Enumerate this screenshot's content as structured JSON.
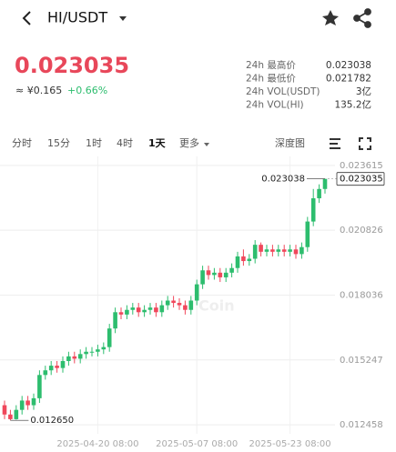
{
  "header": {
    "title": "HI/USDT"
  },
  "price": {
    "last": "0.023035",
    "approx": "≈ ¥0.165",
    "change": "+0.66%"
  },
  "stats": [
    [
      "24h 最高价",
      "0.023038"
    ],
    [
      "24h 最低价",
      "0.021782"
    ],
    [
      "24h VOL(USDT)",
      "3亿"
    ],
    [
      "24h VOL(HI)",
      "135.2亿"
    ]
  ],
  "tabs": [
    "分时",
    "15分",
    "1时",
    "4时",
    "1天",
    "更多"
  ],
  "depth": "深度图",
  "chart_data": {
    "type": "candlestick",
    "categories": [
      null,
      null,
      null,
      null,
      null,
      null,
      null,
      null,
      null,
      null,
      null,
      null,
      null,
      null,
      null,
      null,
      "2025-04-20 08:00",
      null,
      null,
      null,
      null,
      null,
      null,
      null,
      null,
      null,
      null,
      null,
      null,
      null,
      null,
      null,
      null,
      "2025-05-07 08:00",
      null,
      null,
      null,
      null,
      null,
      null,
      null,
      null,
      null,
      null,
      null,
      null,
      null,
      null,
      null,
      "2025-05-23 08:00",
      null,
      null,
      null,
      null,
      null,
      null
    ],
    "series": {
      "open": [
        0.0133,
        0.0129,
        0.0127,
        0.0131,
        0.0135,
        0.0133,
        0.0136,
        0.0146,
        0.0148,
        0.015,
        0.0149,
        0.0152,
        0.0154,
        0.0153,
        0.0155,
        0.0156,
        0.0156,
        0.0157,
        0.0158,
        0.0166,
        0.0173,
        0.0172,
        0.0174,
        0.0175,
        0.0173,
        0.0174,
        0.0175,
        0.0173,
        0.0176,
        0.0178,
        0.0177,
        0.0176,
        0.0174,
        0.0178,
        0.0185,
        0.0191,
        0.0189,
        0.019,
        0.0188,
        0.019,
        0.0192,
        0.0197,
        0.0195,
        0.0196,
        0.0202,
        0.0199,
        0.02,
        0.0199,
        0.02,
        0.0199,
        0.02,
        0.0198,
        0.0201,
        0.0212,
        0.0222,
        0.0226
      ],
      "high": [
        0.0135,
        0.0131,
        0.0133,
        0.0137,
        0.0137,
        0.0138,
        0.0148,
        0.015,
        0.0152,
        0.0152,
        0.0154,
        0.0156,
        0.0156,
        0.0157,
        0.0158,
        0.0158,
        0.0159,
        0.016,
        0.0168,
        0.0175,
        0.0175,
        0.0176,
        0.0177,
        0.0177,
        0.0176,
        0.0177,
        0.0177,
        0.0178,
        0.018,
        0.018,
        0.0179,
        0.0178,
        0.018,
        0.0187,
        0.0193,
        0.0193,
        0.0192,
        0.0192,
        0.0192,
        0.0194,
        0.0199,
        0.02,
        0.0198,
        0.0204,
        0.0203,
        0.0202,
        0.0202,
        0.0202,
        0.0202,
        0.0202,
        0.0202,
        0.0203,
        0.0214,
        0.0226,
        0.0228,
        0.023038
      ],
      "low": [
        0.0127,
        0.01265,
        0.01268,
        0.0129,
        0.0131,
        0.0131,
        0.0134,
        0.0144,
        0.0146,
        0.0147,
        0.0147,
        0.015,
        0.0151,
        0.0151,
        0.0153,
        0.0154,
        0.0154,
        0.0155,
        0.0156,
        0.0164,
        0.017,
        0.017,
        0.0172,
        0.0171,
        0.0171,
        0.0172,
        0.0171,
        0.0171,
        0.0174,
        0.0175,
        0.0174,
        0.0172,
        0.0172,
        0.0176,
        0.0183,
        0.0187,
        0.0187,
        0.0186,
        0.0186,
        0.0188,
        0.019,
        0.0193,
        0.0193,
        0.0194,
        0.0197,
        0.0197,
        0.0197,
        0.0197,
        0.0197,
        0.0197,
        0.0196,
        0.0196,
        0.0199,
        0.021,
        0.022,
        0.0224
      ],
      "close": [
        0.0129,
        0.0127,
        0.0131,
        0.0135,
        0.0133,
        0.0136,
        0.0146,
        0.0148,
        0.015,
        0.0149,
        0.0152,
        0.0154,
        0.0153,
        0.0155,
        0.0156,
        0.0156,
        0.0157,
        0.0158,
        0.0166,
        0.0173,
        0.0172,
        0.0174,
        0.0175,
        0.0173,
        0.0174,
        0.0175,
        0.0173,
        0.0176,
        0.0178,
        0.0177,
        0.0176,
        0.0174,
        0.0178,
        0.0185,
        0.0191,
        0.0189,
        0.019,
        0.0188,
        0.019,
        0.0192,
        0.0197,
        0.0195,
        0.0196,
        0.0202,
        0.0199,
        0.02,
        0.0199,
        0.02,
        0.0199,
        0.02,
        0.0198,
        0.0201,
        0.0212,
        0.0222,
        0.0226,
        0.023035
      ]
    },
    "up_color": "#2dbd6e",
    "down_color": "#f0475b",
    "ylim": [
      0.01207,
      0.024
    ],
    "yticks": [
      0.023615,
      0.020826,
      0.018036,
      0.015247,
      0.012458
    ],
    "grid": true,
    "max_label": "0.023038",
    "min_label": "0.012650",
    "watermark": "Coin"
  }
}
